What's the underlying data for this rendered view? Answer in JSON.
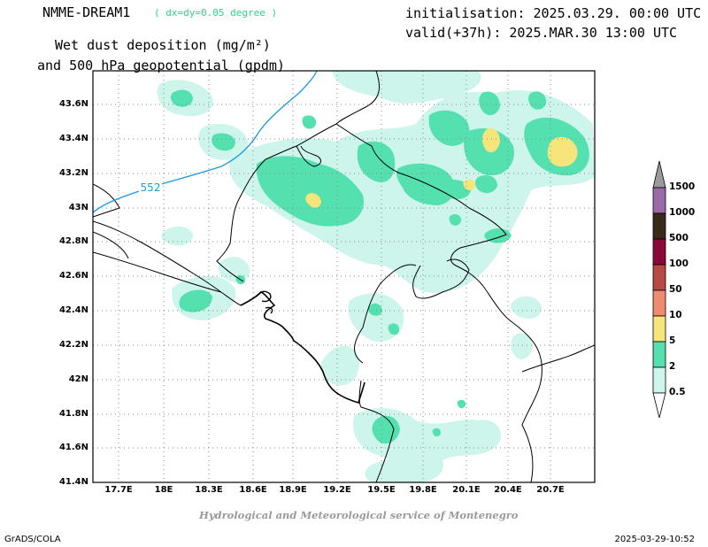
{
  "header": {
    "model": "NMME-DREAM1",
    "resolution": "( dx=dy=0.05 degree )",
    "initialisation": "initialisation: 2025.03.29. 00:00 UTC",
    "valid": "valid(+37h): 2025.MAR.30 13:00 UTC",
    "product_line1": "Wet dust deposition (mg/m²)",
    "product_line2": "and 500 hPa geopotential (gpdm)"
  },
  "map": {
    "lat_ticks": [
      "43.6N",
      "43.4N",
      "43.2N",
      "43N",
      "42.8N",
      "42.6N",
      "42.4N",
      "42.2N",
      "42N",
      "41.8N",
      "41.6N",
      "41.4N"
    ],
    "lon_ticks": [
      "17.7E",
      "18E",
      "18.3E",
      "18.6E",
      "18.9E",
      "19.2E",
      "19.5E",
      "19.8E",
      "20.1E",
      "20.4E",
      "20.7E"
    ],
    "contour_label": "552",
    "contour_color": "#1a9ae0",
    "credit": "Hydrological and Meteorological service of Montenegro"
  },
  "legend": {
    "levels": [
      "1500",
      "1000",
      "500",
      "100",
      "50",
      "10",
      "5",
      "2",
      "0.5"
    ],
    "colors": [
      "#9b9b9b",
      "#9a6aa8",
      "#3a2a1a",
      "#8c0a3a",
      "#b84a44",
      "#ee8c70",
      "#f5e57a",
      "#55e0b0",
      "#cdf5ec"
    ]
  },
  "footer": {
    "left": "GrADS/COLA",
    "right": "2025-03-29-10:52"
  }
}
